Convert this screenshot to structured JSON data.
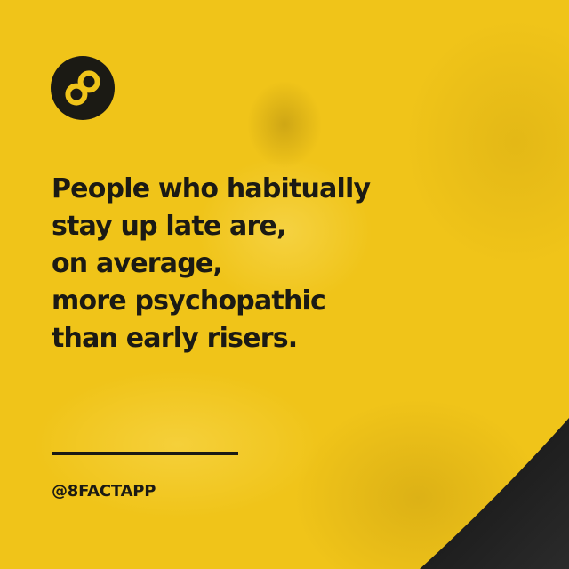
{
  "card": {
    "background_color": "#f0c419",
    "ink_color": "#1b1a14",
    "logo_icon": "figure-eight-icon",
    "headline_lines": [
      "People who habitually",
      "stay up late are,",
      "on average,",
      "more psychopathic",
      "than early risers."
    ],
    "handle": "@8FACTAPP"
  }
}
